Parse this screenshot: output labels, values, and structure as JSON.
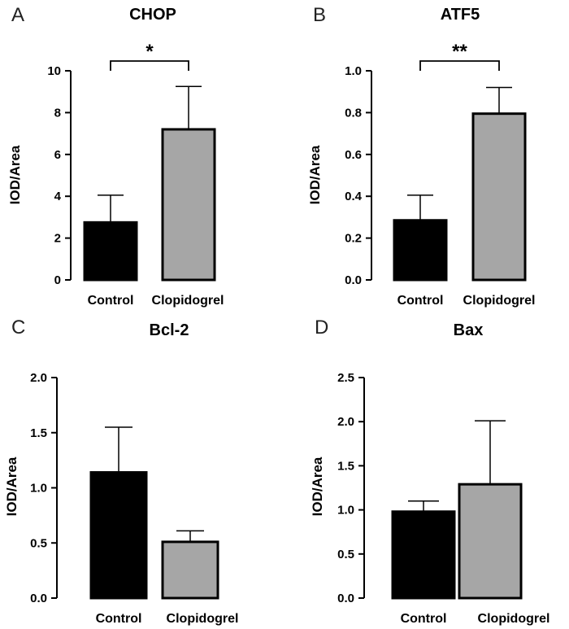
{
  "colors": {
    "control_fill": "#000000",
    "clopidogrel_fill": "#a6a6a6",
    "stroke": "#000000"
  },
  "chart_data": [
    {
      "panel": "A",
      "type": "bar",
      "title": "CHOP",
      "xlabel": "",
      "ylabel": "IOD/Area",
      "categories": [
        "Control",
        "Clopidogrel"
      ],
      "values": [
        2.75,
        7.2
      ],
      "errors": [
        1.3,
        2.05
      ],
      "ylim": [
        0,
        10
      ],
      "yticks": [
        0,
        2,
        4,
        6,
        8,
        10
      ],
      "ytick_labels": [
        "0",
        "2",
        "4",
        "6",
        "8",
        "10"
      ],
      "significance": "*",
      "grid": false
    },
    {
      "panel": "B",
      "type": "bar",
      "title": "ATF5",
      "xlabel": "",
      "ylabel": "IOD/Area",
      "categories": [
        "Control",
        "Clopidogrel"
      ],
      "values": [
        0.285,
        0.795
      ],
      "errors": [
        0.12,
        0.125
      ],
      "ylim": [
        0,
        1.0
      ],
      "yticks": [
        0,
        0.2,
        0.4,
        0.6,
        0.8,
        1.0
      ],
      "ytick_labels": [
        "0.0",
        "0.2",
        "0.4",
        "0.6",
        "0.8",
        "1.0"
      ],
      "significance": "**",
      "grid": false
    },
    {
      "panel": "C",
      "type": "bar",
      "title": "Bcl-2",
      "xlabel": "",
      "ylabel": "IOD/Area",
      "categories": [
        "Control",
        "Clopidogrel"
      ],
      "values": [
        1.14,
        0.51
      ],
      "errors": [
        0.41,
        0.1
      ],
      "ylim": [
        0,
        2.0
      ],
      "yticks": [
        0,
        0.5,
        1.0,
        1.5,
        2.0
      ],
      "ytick_labels": [
        "0.0",
        "0.5",
        "1.0",
        "1.5",
        "2.0"
      ],
      "significance": "",
      "grid": false
    },
    {
      "panel": "D",
      "type": "bar",
      "title": "Bax",
      "xlabel": "",
      "ylabel": "IOD/Area",
      "categories": [
        "Control",
        "Clopidogrel"
      ],
      "values": [
        0.98,
        1.29
      ],
      "errors": [
        0.12,
        0.72
      ],
      "ylim": [
        0,
        2.5
      ],
      "yticks": [
        0,
        0.5,
        1.0,
        1.5,
        2.0,
        2.5
      ],
      "ytick_labels": [
        "0.0",
        "0.5",
        "1.0",
        "1.5",
        "2.0",
        "2.5"
      ],
      "significance": "",
      "grid": false
    }
  ]
}
